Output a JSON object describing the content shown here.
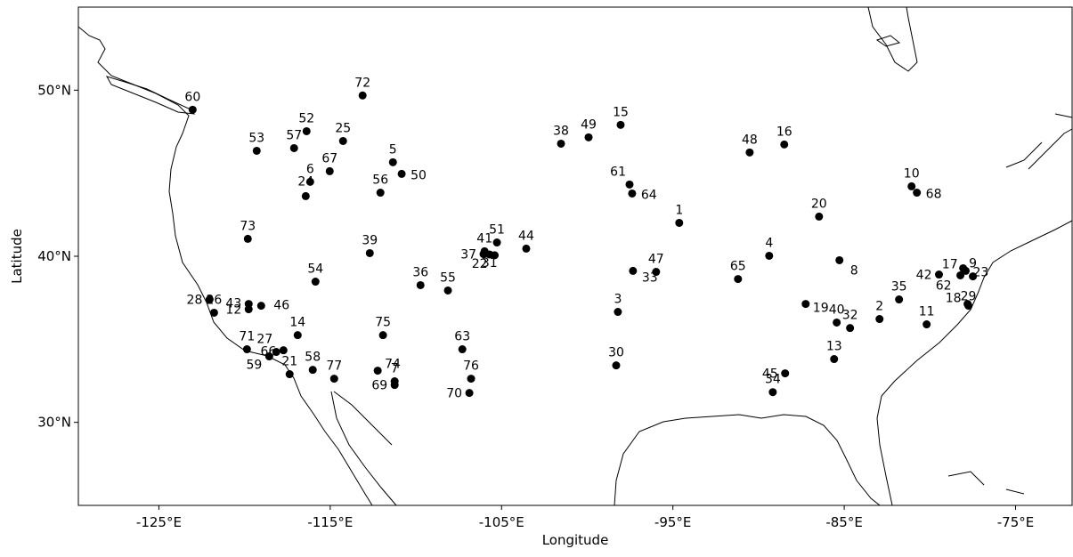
{
  "chart_data": {
    "type": "scatter",
    "xlabel": "Longitude",
    "ylabel": "Latitude",
    "color": "#000000",
    "xlim": [
      -129.7,
      -71.7
    ],
    "ylim": [
      25,
      55
    ],
    "xticks": [
      {
        "value": -125,
        "label": "-125°E"
      },
      {
        "value": -115,
        "label": "-115°E"
      },
      {
        "value": -105,
        "label": "-105°E"
      },
      {
        "value": -95,
        "label": "-95°E"
      },
      {
        "value": -85,
        "label": "-85°E"
      },
      {
        "value": -75,
        "label": "-75°E"
      }
    ],
    "yticks": [
      {
        "value": 30,
        "label": "30°N"
      },
      {
        "value": 40,
        "label": "40°N"
      },
      {
        "value": 50,
        "label": "50°N"
      }
    ],
    "labels": [
      "1",
      "2",
      "3",
      "4",
      "5",
      "6",
      "7",
      "8",
      "9",
      "10",
      "11",
      "12",
      "13",
      "14",
      "15",
      "16",
      "17",
      "18",
      "19",
      "20",
      "21",
      "22",
      "23",
      "24",
      "25",
      "26",
      "27",
      "28",
      "29",
      "30",
      "31",
      "32",
      "33",
      "34",
      "35",
      "36",
      "37",
      "38",
      "39",
      "40",
      "41",
      "42",
      "43",
      "44",
      "45",
      "46",
      "47",
      "48",
      "49",
      "50",
      "51",
      "52",
      "53",
      "54",
      "55",
      "56",
      "57",
      "58",
      "59",
      "60",
      "61",
      "62",
      "63",
      "64",
      "65",
      "66",
      "67",
      "68",
      "69",
      "70",
      "71",
      "72",
      "73",
      "74",
      "75",
      "76",
      "77"
    ],
    "x": [
      -94.63,
      -82.94,
      -98.21,
      -89.38,
      -111.34,
      -116.17,
      -111.24,
      -85.28,
      -77.49,
      -81.07,
      -80.19,
      -119.76,
      -85.59,
      -116.9,
      -98.05,
      -88.5,
      -78.06,
      -77.75,
      -87.25,
      -86.47,
      -117.37,
      -105.4,
      -77.91,
      -116.43,
      -114.25,
      -121.78,
      -118.15,
      -122.04,
      -77.8,
      -98.31,
      -105.7,
      -84.66,
      -97.33,
      -89.17,
      -81.8,
      -109.73,
      -106.05,
      -101.53,
      -112.69,
      -85.44,
      -105.99,
      -79.47,
      -119.76,
      -103.56,
      -88.45,
      -119.03,
      -95.98,
      -90.52,
      -99.92,
      -110.83,
      -105.27,
      -116.38,
      -119.29,
      -115.86,
      -108.13,
      -112.07,
      -117.11,
      -116.02,
      -118.56,
      -123.03,
      -97.53,
      -78.22,
      -107.29,
      -97.38,
      -91.2,
      -117.73,
      -115.03,
      -80.76,
      -111.24,
      -106.88,
      -119.86,
      -113.11,
      -119.81,
      -112.23,
      -111.92,
      -106.78,
      -114.77
    ],
    "y": [
      42.01,
      36.22,
      36.65,
      40.03,
      45.66,
      44.48,
      32.47,
      39.76,
      38.79,
      44.21,
      35.9,
      36.81,
      33.81,
      35.25,
      47.91,
      46.73,
      39.28,
      37.02,
      37.13,
      42.39,
      32.9,
      40.06,
      39.12,
      43.62,
      46.94,
      36.6,
      34.24,
      37.4,
      37.13,
      33.43,
      40.11,
      35.68,
      39.12,
      31.82,
      37.4,
      38.26,
      40.13,
      46.78,
      40.19,
      36.01,
      40.3,
      38.9,
      37.13,
      40.46,
      32.95,
      37.02,
      39.06,
      46.25,
      47.16,
      44.96,
      40.83,
      47.53,
      46.35,
      38.47,
      37.94,
      43.83,
      46.51,
      33.16,
      33.97,
      48.82,
      44.32,
      38.85,
      34.4,
      43.78,
      38.63,
      34.34,
      45.12,
      43.83,
      32.25,
      31.77,
      34.4,
      49.68,
      41.05,
      33.11,
      35.25,
      32.63,
      32.63
    ]
  }
}
